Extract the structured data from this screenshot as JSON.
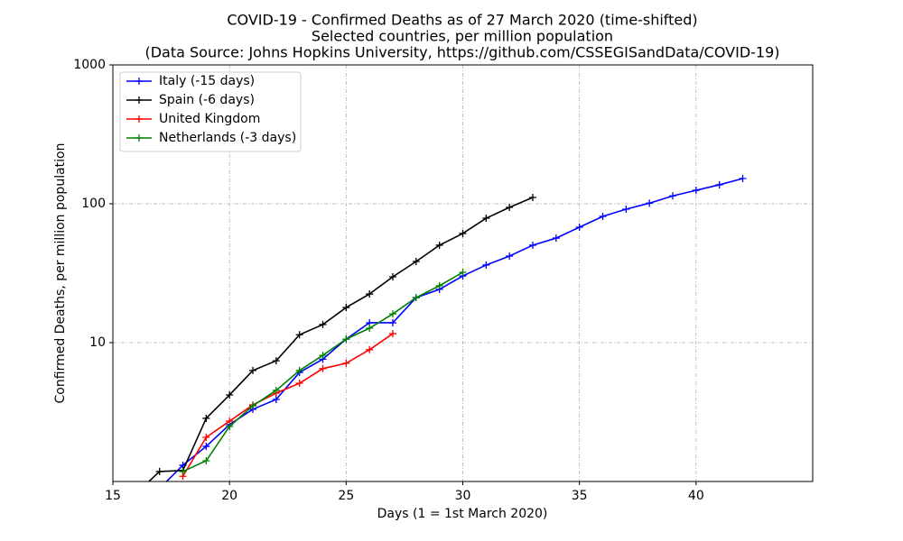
{
  "chart_data": {
    "type": "line",
    "title": [
      "COVID-19 - Confirmed Deaths as of 27 March 2020 (time-shifted)",
      "Selected countries, per million population",
      "(Data Source: Johns Hopkins University, https://github.com/CSSEGISandData/COVID-19)"
    ],
    "x_label": "Days (1 = 1st March 2020)",
    "y_label": "Confirmed Deaths, per million population",
    "xlim": [
      15,
      45
    ],
    "xticks": [
      15,
      20,
      25,
      30,
      35,
      40
    ],
    "ylim": [
      1,
      1000
    ],
    "yticks": [
      10,
      100,
      1000
    ],
    "yscale": "log",
    "grid": true,
    "legend": "upper left",
    "series": [
      {
        "name": "Italy (-15 days)",
        "color": "#0000ff",
        "x": [
          17,
          18,
          19,
          20,
          21,
          22,
          23,
          24,
          25,
          26,
          27,
          28,
          29,
          30,
          31,
          32,
          33,
          34,
          35,
          36,
          37,
          38,
          39,
          40,
          41,
          42
        ],
        "values": [
          0.89,
          1.31,
          1.79,
          2.57,
          3.31,
          3.9,
          6.1,
          7.6,
          10.6,
          13.9,
          13.9,
          21.1,
          24.2,
          30.2,
          36.2,
          42,
          50.3,
          56.6,
          67.8,
          81.1,
          91.4,
          101,
          114,
          125,
          137,
          152
        ]
      },
      {
        "name": "Spain (-6 days)",
        "color": "#000000",
        "x": [
          16,
          17,
          18,
          19,
          20,
          21,
          22,
          23,
          24,
          25,
          26,
          27,
          28,
          29,
          30,
          31,
          32,
          33
        ],
        "values": [
          0.82,
          1.18,
          1.2,
          2.85,
          4.2,
          6.3,
          7.4,
          11.4,
          13.5,
          17.9,
          22.4,
          29.8,
          38.4,
          50.3,
          61.1,
          78.7,
          94.2,
          111
        ]
      },
      {
        "name": "United Kingdom",
        "color": "#ff0000",
        "x": [
          18,
          19,
          20,
          21,
          22,
          23,
          24,
          25,
          26,
          27
        ],
        "values": [
          1.09,
          2.08,
          2.72,
          3.56,
          4.33,
          5.1,
          6.5,
          7.1,
          8.9,
          11.6
        ]
      },
      {
        "name": "Netherlands (-3 days)",
        "color": "#008000",
        "x": [
          18,
          19,
          20,
          21,
          22,
          23,
          24,
          25,
          26,
          27,
          28,
          29,
          30
        ],
        "values": [
          1.18,
          1.41,
          2.49,
          3.51,
          4.53,
          6.3,
          8.1,
          10.6,
          12.7,
          16.1,
          21.1,
          25.7,
          32.1
        ]
      }
    ]
  }
}
